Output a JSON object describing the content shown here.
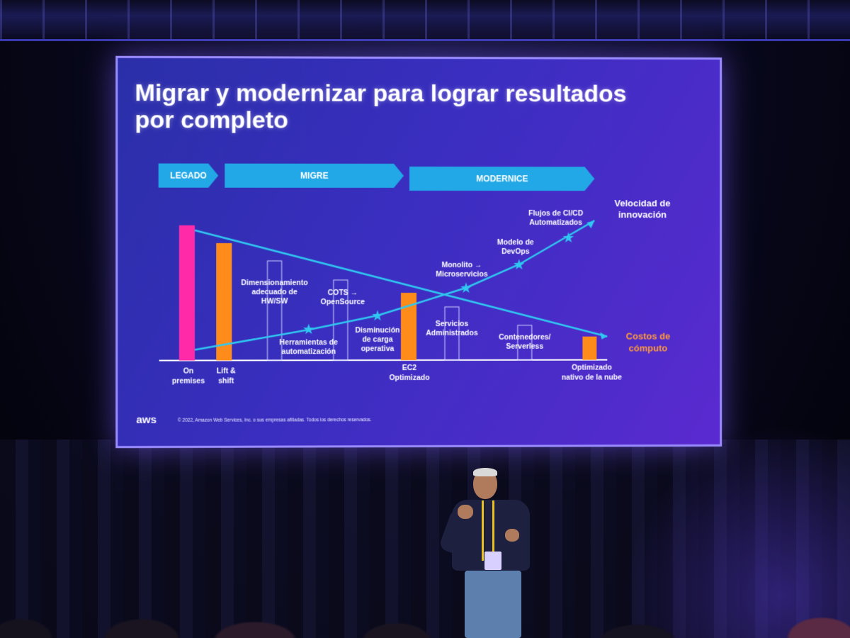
{
  "slide": {
    "title_line1": "Migrar y modernizar para lograr resultados",
    "title_line2": "por completo",
    "phases": [
      {
        "label": "LEGADO"
      },
      {
        "label": "MIGRE"
      },
      {
        "label": "MODERNICE"
      }
    ],
    "stages": [
      {
        "line1": "On",
        "line2": "premises"
      },
      {
        "line1": "Lift &",
        "line2": "shift"
      },
      {
        "line1": "EC2",
        "line2": "Optimizado"
      },
      {
        "line1": "Optimizado",
        "line2": "nativo de la nube"
      }
    ],
    "milestones": [
      {
        "lines": [
          "Dimensionamiento",
          "adecuado de",
          "HW/SW"
        ]
      },
      {
        "lines": [
          "Herramientas de",
          "automatización"
        ]
      },
      {
        "lines": [
          "COTS →",
          "OpenSource"
        ]
      },
      {
        "lines": [
          "Disminución",
          "de carga",
          "operativa"
        ]
      },
      {
        "lines": [
          "Servicios",
          "Administrados"
        ]
      },
      {
        "lines": [
          "Monolito →",
          "Microservicios"
        ]
      },
      {
        "lines": [
          "Modelo de",
          "DevOps"
        ]
      },
      {
        "lines": [
          "Contenedores/",
          "Serverless"
        ]
      },
      {
        "lines": [
          "Flujos de CI/CD",
          "Automatizados"
        ]
      }
    ],
    "legend_innovation": [
      "Velocidad de",
      "innovación"
    ],
    "legend_costs": [
      "Costos de",
      "cómputo"
    ],
    "footer_logo": "aws",
    "footer_copyright": "© 2022, Amazon Web Services, Inc. o sus empresas afiliadas. Todos los derechos reservados.",
    "colors": {
      "bar_pink": "#ff2aa8",
      "bar_orange": "#ff8c1a",
      "line_cyan": "#2fc7f0",
      "cost_label": "#ff9a3c"
    }
  }
}
